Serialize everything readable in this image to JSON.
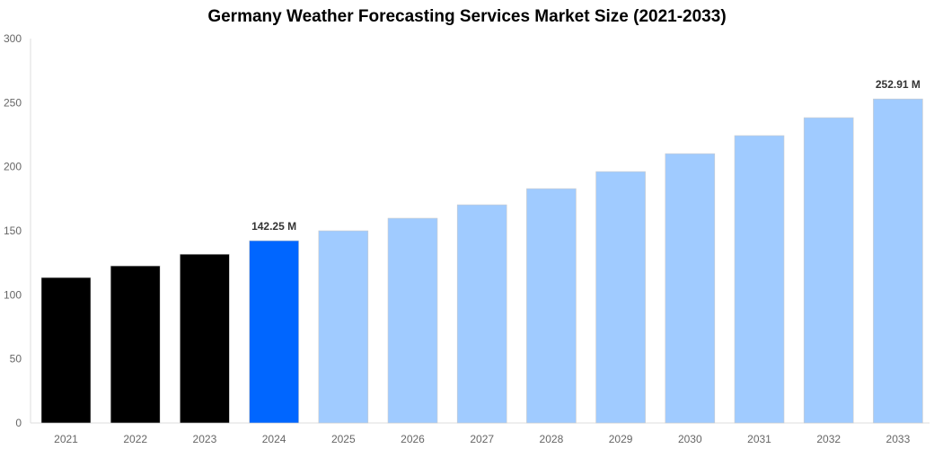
{
  "chart_data": {
    "type": "bar",
    "title": "Germany Weather Forecasting Services Market Size (2021-2033)",
    "xlabel": "",
    "ylabel": "",
    "ylim": [
      0,
      300
    ],
    "yticks": [
      0,
      50,
      100,
      150,
      200,
      250,
      300
    ],
    "grid": false,
    "categories": [
      "2021",
      "2022",
      "2023",
      "2024",
      "2025",
      "2026",
      "2027",
      "2028",
      "2029",
      "2030",
      "2031",
      "2032",
      "2033"
    ],
    "values": [
      113.5,
      122.6,
      131.7,
      142.25,
      150.0,
      159.8,
      170.3,
      182.9,
      196.2,
      210.2,
      224.3,
      238.3,
      252.91
    ],
    "colors": [
      "#000000",
      "#000000",
      "#000000",
      "#0066ff",
      "#a0cbff",
      "#a0cbff",
      "#a0cbff",
      "#a0cbff",
      "#a0cbff",
      "#a0cbff",
      "#a0cbff",
      "#a0cbff",
      "#a0cbff"
    ],
    "data_labels": [
      {
        "category": "2024",
        "text": "142.25 M"
      },
      {
        "category": "2033",
        "text": "252.91 M"
      }
    ]
  }
}
